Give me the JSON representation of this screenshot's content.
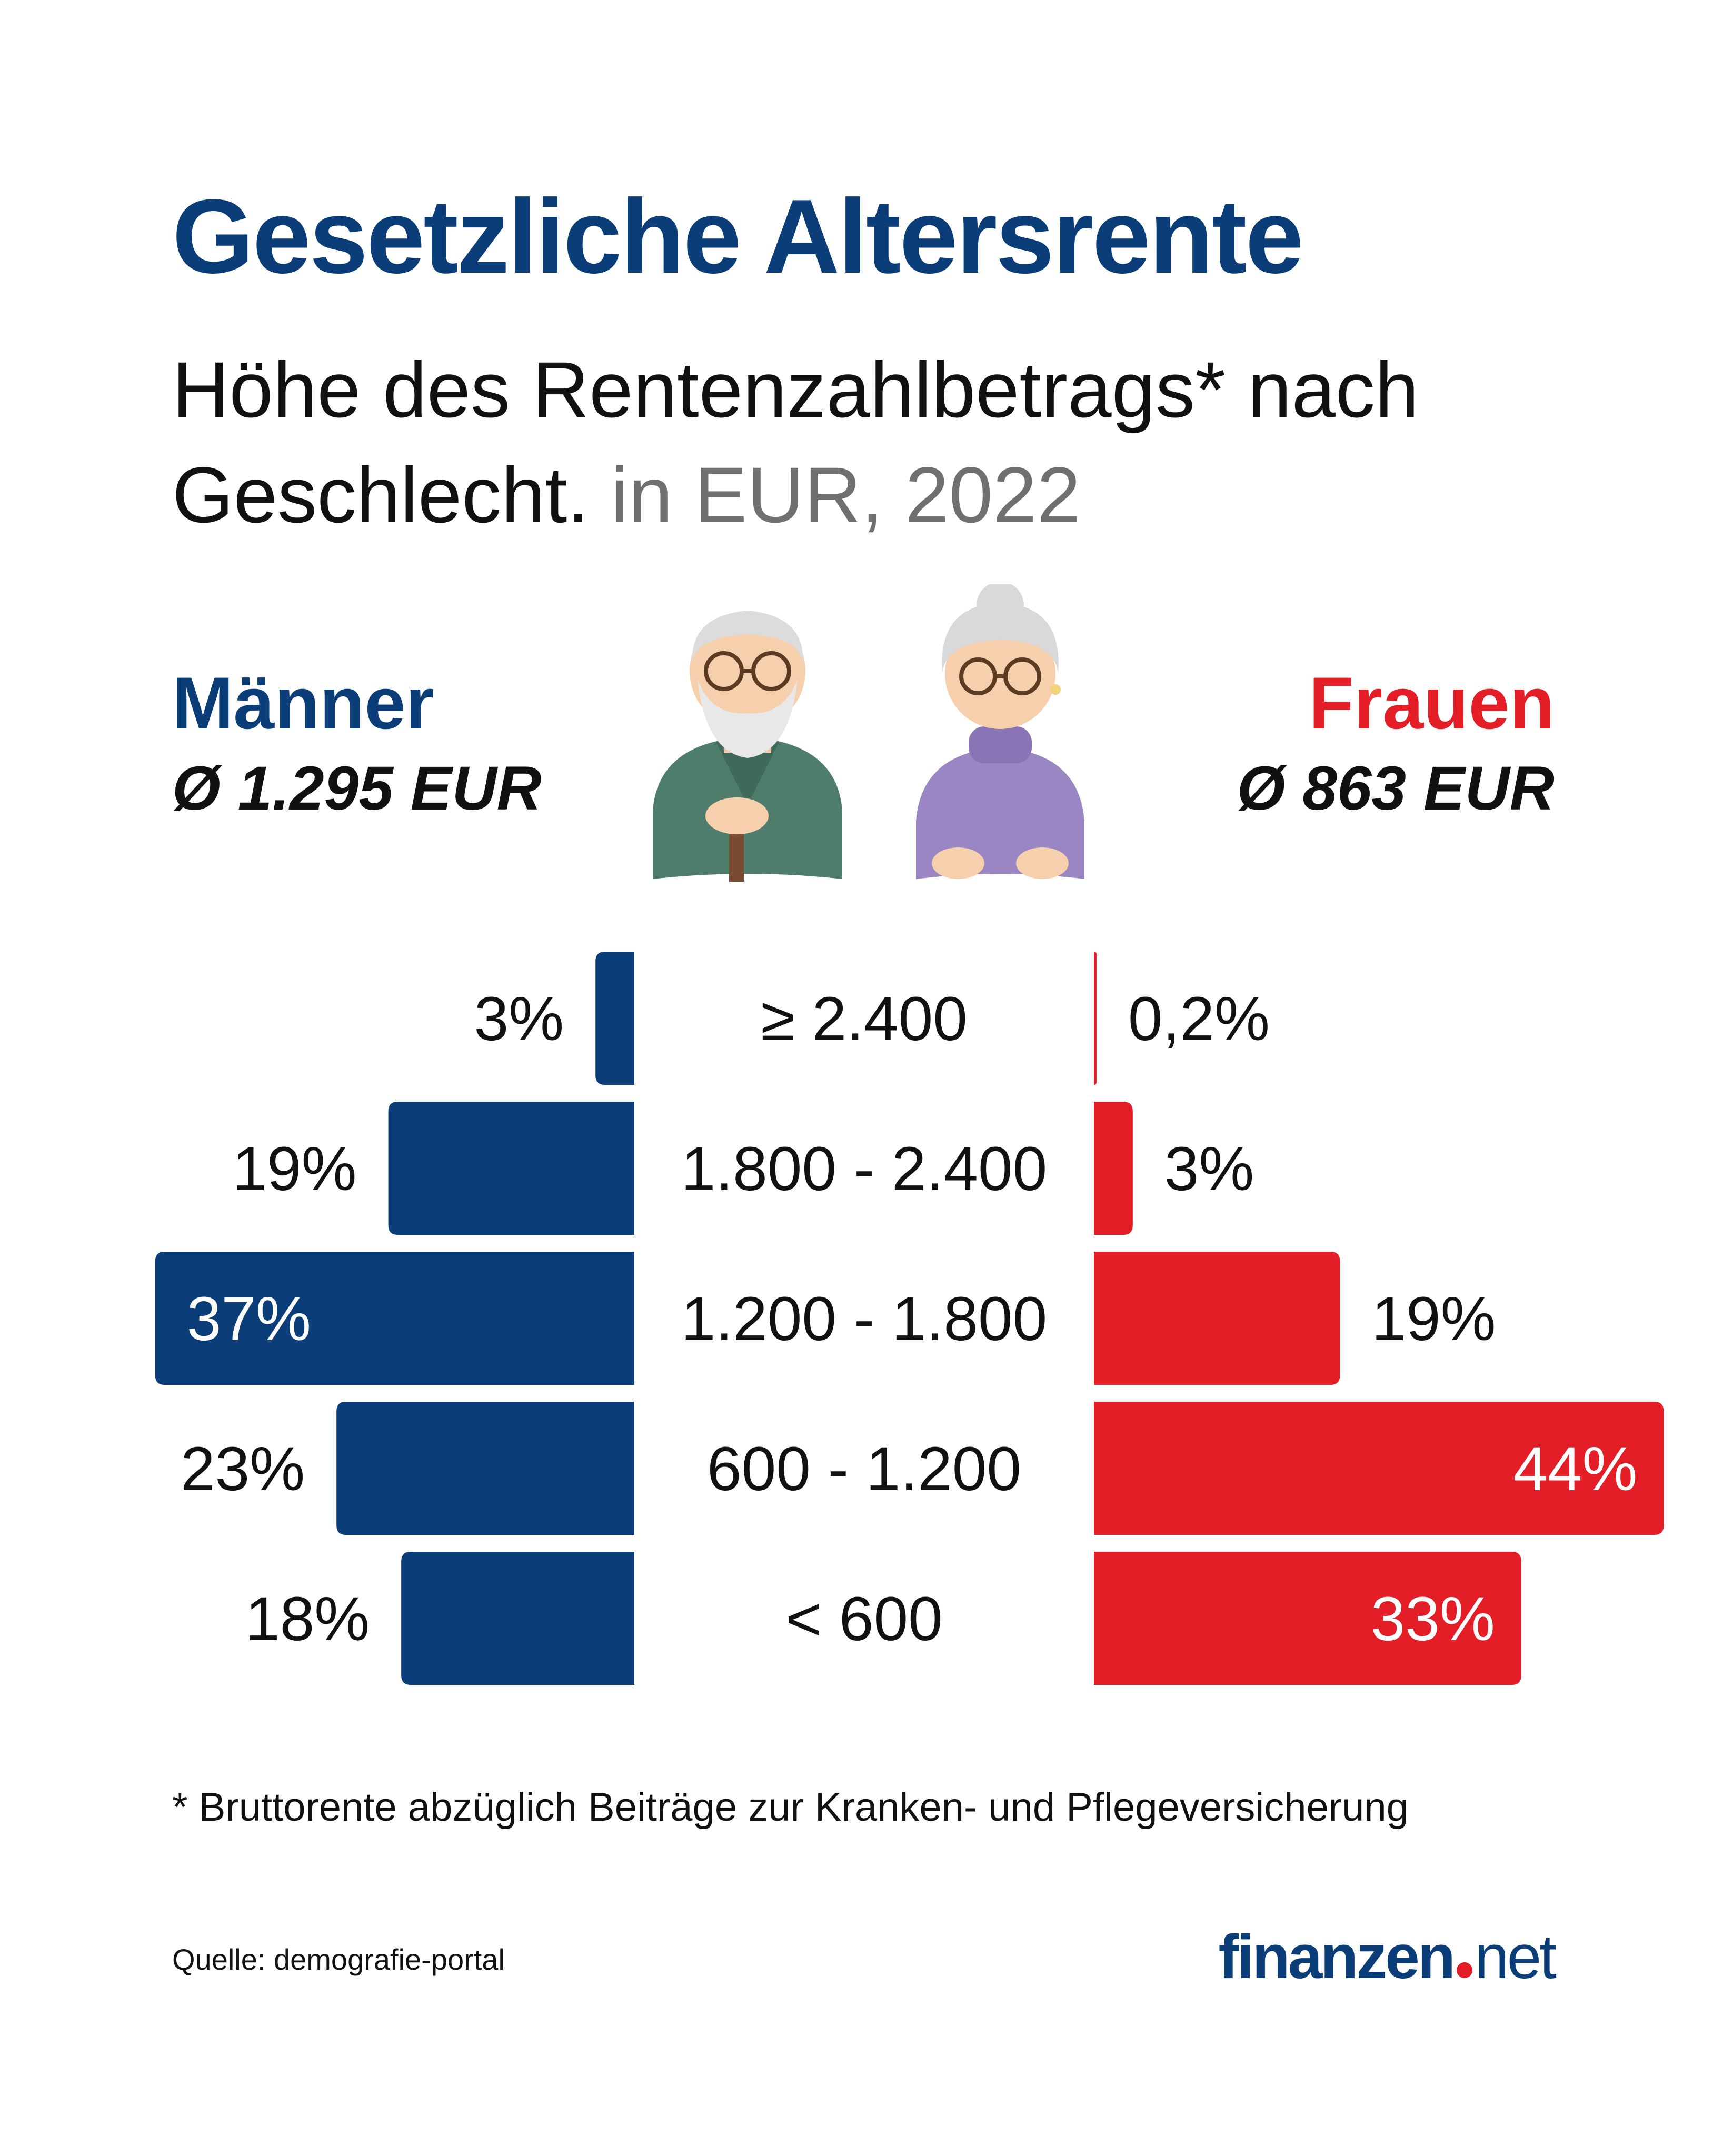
{
  "title": "Gesetzliche Altersrente",
  "subtitle": {
    "main": "Höhe des Rentenzahlbetrags* nach Geschlecht.",
    "unit": "in EUR, 2022"
  },
  "men": {
    "label": "Männer",
    "average": "Ø 1.295 EUR"
  },
  "women": {
    "label": "Frauen",
    "average": "Ø 863 EUR"
  },
  "colors": {
    "men": "#0b3d78",
    "women": "#e41e26",
    "text": "#111111"
  },
  "chart_data": {
    "type": "bar",
    "orientation": "horizontal-diverging",
    "title": "Höhe des Rentenzahlbetrags nach Geschlecht",
    "categories": [
      "≥ 2.400",
      "1.800 - 2.400",
      "1.200 - 1.800",
      "600 - 1.200",
      "< 600"
    ],
    "series": [
      {
        "name": "Männer",
        "values": [
          3,
          19,
          37,
          23,
          18
        ],
        "labels": [
          "3%",
          "19%",
          "37%",
          "23%",
          "18%"
        ]
      },
      {
        "name": "Frauen",
        "values": [
          0.2,
          3,
          19,
          44,
          33
        ],
        "labels": [
          "0,2%",
          "3%",
          "19%",
          "44%",
          "33%"
        ]
      }
    ],
    "unit": "%"
  },
  "footnote": "* Bruttorente abzüglich Beiträge zur Kranken- und Pflegeversicherung",
  "source": "Quelle: demografie-portal",
  "logo": {
    "part1": "finanzen",
    "part2": "net"
  }
}
